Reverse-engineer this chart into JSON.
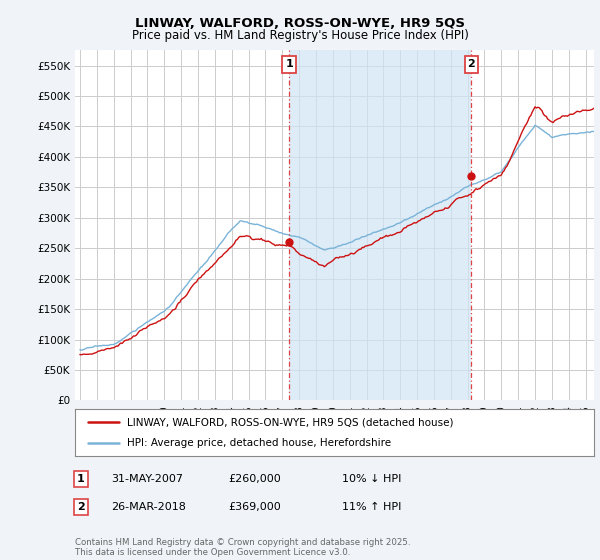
{
  "title": "LINWAY, WALFORD, ROSS-ON-WYE, HR9 5QS",
  "subtitle": "Price paid vs. HM Land Registry's House Price Index (HPI)",
  "bg_color": "#f0f4f8",
  "plot_bg_color": "#ffffff",
  "grid_color": "#cccccc",
  "shade_color": "#d0e4f5",
  "hpi_color": "#7ab3d8",
  "price_color": "#cc1111",
  "vline_color": "#dd4444",
  "ylim": [
    0,
    575000
  ],
  "yticks": [
    0,
    50000,
    100000,
    150000,
    200000,
    250000,
    300000,
    350000,
    400000,
    450000,
    500000,
    550000
  ],
  "ytick_labels": [
    "£0",
    "£50K",
    "£100K",
    "£150K",
    "£200K",
    "£250K",
    "£300K",
    "£350K",
    "£400K",
    "£450K",
    "£500K",
    "£550K"
  ],
  "xlim_start": 1994.7,
  "xlim_end": 2025.5,
  "marker1_x": 2007.42,
  "marker1_y": 260000,
  "marker2_x": 2018.23,
  "marker2_y": 369000,
  "marker1_date": "31-MAY-2007",
  "marker1_price": "£260,000",
  "marker1_hpi": "10% ↓ HPI",
  "marker2_date": "26-MAR-2018",
  "marker2_price": "£369,000",
  "marker2_hpi": "11% ↑ HPI",
  "legend_line1": "LINWAY, WALFORD, ROSS-ON-WYE, HR9 5QS (detached house)",
  "legend_line2": "HPI: Average price, detached house, Herefordshire",
  "footer": "Contains HM Land Registry data © Crown copyright and database right 2025.\nThis data is licensed under the Open Government Licence v3.0."
}
